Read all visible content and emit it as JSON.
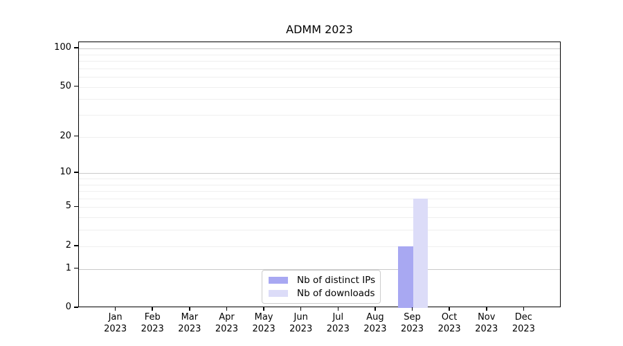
{
  "chart_data": {
    "type": "bar",
    "title": "ADMM 2023",
    "categories": [
      "Jan",
      "Feb",
      "Mar",
      "Apr",
      "May",
      "Jun",
      "Jul",
      "Aug",
      "Sep",
      "Oct",
      "Nov",
      "Dec"
    ],
    "category_year": "2023",
    "series": [
      {
        "name": "Nb of distinct IPs",
        "color": "#a8a8f2",
        "values": [
          0,
          0,
          0,
          0,
          0,
          0,
          0,
          0,
          2,
          0,
          0,
          0
        ]
      },
      {
        "name": "Nb of downloads",
        "color": "#dcdcf8",
        "values": [
          0,
          0,
          0,
          0,
          0,
          0,
          0,
          0,
          6,
          0,
          0,
          0
        ]
      }
    ],
    "xlabel": "",
    "ylabel": "",
    "yscale": "log1p",
    "ylim": [
      0,
      112
    ],
    "y_ticks": [
      0,
      1,
      2,
      5,
      10,
      20,
      50,
      100
    ],
    "y_major_gridlines": [
      1,
      10,
      100
    ],
    "y_minor_gridlines": [
      2,
      3,
      4,
      5,
      6,
      7,
      8,
      9,
      20,
      30,
      40,
      50,
      60,
      70,
      80,
      90
    ],
    "grid": true,
    "legend_position": "lower center"
  },
  "colors": {
    "axis": "#000000",
    "major_grid": "#c9c9c9",
    "minor_grid": "#efefef",
    "legend_border": "#cccccc",
    "background": "#ffffff"
  }
}
